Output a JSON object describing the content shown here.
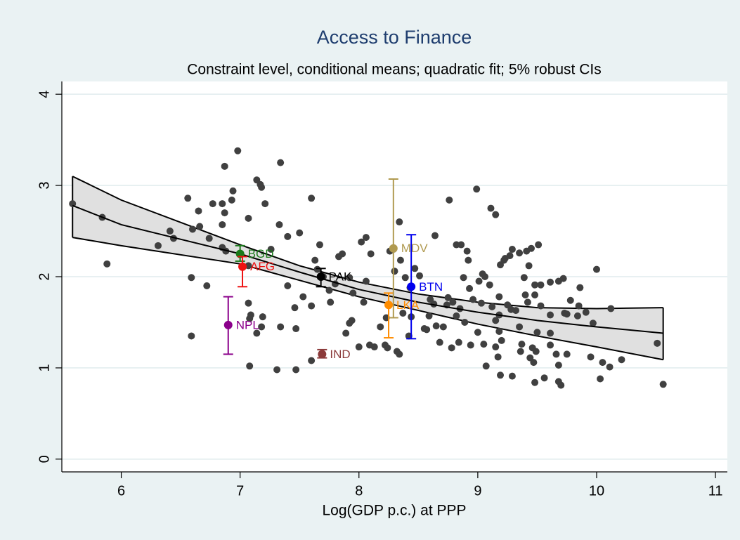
{
  "chart_data": {
    "type": "scatter",
    "title": "Access to Finance",
    "subtitle": "Constraint level, conditional means; quadratic fit; 5% robust CIs",
    "x_label": "Log(GDP p.c.) at PPP",
    "xlim": [
      5.5,
      11.1
    ],
    "ylim": [
      -0.14,
      4.14
    ],
    "xticks": [
      6,
      7,
      8,
      9,
      10,
      11
    ],
    "yticks": [
      0,
      1,
      2,
      3,
      4
    ],
    "grid": true,
    "point_color": "#404040",
    "x": [
      5.59,
      5.84,
      5.88,
      6.31,
      6.41,
      6.44,
      6.56,
      6.6,
      6.59,
      6.59,
      6.65,
      6.66,
      6.72,
      6.74,
      6.77,
      6.85,
      6.85,
      6.87,
      6.87,
      6.93,
      6.94,
      6.98,
      6.85,
      6.88,
      7.07,
      7.07,
      7.08,
      7.09,
      7.08,
      7.07,
      7.14,
      7.17,
      7.18,
      7.21,
      7.14,
      7.18,
      7.19,
      7.26,
      7.31,
      7.33,
      7.34,
      7.34,
      7.4,
      7.4,
      7.46,
      7.47,
      7.47,
      7.5,
      7.53,
      7.6,
      7.6,
      7.63,
      7.65,
      7.6,
      7.67,
      7.7,
      7.75,
      7.76,
      7.8,
      7.83,
      7.86,
      7.89,
      7.92,
      7.94,
      7.92,
      7.95,
      8,
      8.02,
      8.04,
      8.06,
      8.06,
      8.09,
      8.13,
      8.1,
      8.18,
      8.22,
      8.23,
      8.24,
      8.26,
      8.29,
      8.32,
      8.34,
      8.3,
      8.34,
      8.35,
      8.37,
      8.39,
      8.42,
      8.43,
      8.44,
      8.47,
      8.51,
      8.55,
      8.57,
      8.59,
      8.6,
      8.63,
      8.64,
      8.65,
      8.68,
      8.71,
      8.74,
      8.75,
      8.79,
      8.76,
      8.78,
      8.82,
      8.82,
      8.84,
      8.85,
      8.86,
      8.88,
      8.89,
      8.91,
      8.92,
      8.93,
      8.94,
      8.96,
      8.99,
      9,
      9.01,
      9.03,
      9.04,
      9.05,
      9.06,
      9.07,
      9.1,
      9.11,
      9.12,
      9.15,
      9.15,
      9.15,
      9.17,
      9.18,
      9.18,
      9.18,
      9.19,
      9.19,
      9.2,
      9.22,
      9.23,
      9.25,
      9.27,
      9.28,
      9.29,
      9.29,
      9.32,
      9.35,
      9.35,
      9.36,
      9.37,
      9.39,
      9.4,
      9.41,
      9.42,
      9.43,
      9.44,
      9.45,
      9.46,
      9.47,
      9.48,
      9.48,
      9.48,
      9.49,
      9.5,
      9.51,
      9.53,
      9.53,
      9.56,
      9.61,
      9.61,
      9.61,
      9.61,
      9.66,
      9.68,
      9.68,
      9.68,
      9.7,
      9.72,
      9.73,
      9.75,
      9.75,
      9.78,
      9.84,
      9.85,
      9.86,
      9.91,
      9.95,
      9.97,
      10,
      10.03,
      10.05,
      10.11,
      10.12,
      10.21,
      10.51,
      10.56
    ],
    "y": [
      2.8,
      2.65,
      2.14,
      2.34,
      2.5,
      2.42,
      2.86,
      2.52,
      1.99,
      1.35,
      2.72,
      2.55,
      1.9,
      2.42,
      2.8,
      2.8,
      2.57,
      2.7,
      3.21,
      2.84,
      2.94,
      3.38,
      2.32,
      2.28,
      2.64,
      1.71,
      1.54,
      1.58,
      1.02,
      2.12,
      3.06,
      3.01,
      2.98,
      2.8,
      1.38,
      1.45,
      1.56,
      2.3,
      0.98,
      2.57,
      3.25,
      1.45,
      1.9,
      2.44,
      1.66,
      1.43,
      0.98,
      2.48,
      1.78,
      1.68,
      1.08,
      2.18,
      2.08,
      2.86,
      2.35,
      2,
      1.85,
      1.72,
      1.92,
      2.22,
      2.25,
      1.38,
      1.49,
      1.52,
      1.99,
      1.82,
      1.23,
      2.38,
      1.72,
      1.95,
      2.43,
      1.25,
      1.23,
      2.25,
      1.45,
      1.25,
      1.55,
      1.22,
      2.28,
      2.3,
      1.18,
      1.15,
      2.06,
      2.6,
      2.18,
      1.6,
      1.99,
      1.35,
      1.88,
      1.56,
      2.09,
      2.01,
      1.43,
      1.42,
      1.57,
      1.75,
      1.7,
      2.45,
      1.46,
      1.28,
      1.45,
      1.69,
      1.77,
      1.72,
      2.84,
      1.22,
      1.57,
      2.35,
      1.28,
      1.65,
      2.35,
      1.99,
      1.5,
      2.28,
      2.18,
      1.87,
      1.25,
      1.75,
      2.96,
      1.39,
      1.95,
      1.71,
      2.03,
      1.26,
      2,
      1.02,
      1.91,
      2.75,
      1.67,
      2.68,
      1.52,
      1.23,
      1.12,
      1.78,
      1.58,
      1.4,
      0.92,
      2.13,
      1.3,
      2.18,
      2.2,
      1.69,
      2.23,
      1.64,
      0.91,
      2.3,
      1.63,
      2.26,
      1.45,
      1.18,
      1.26,
      1.99,
      1.8,
      2.28,
      1.72,
      2.12,
      1.11,
      2.31,
      1.22,
      1.06,
      1.91,
      1.8,
      0.84,
      1.18,
      1.39,
      2.35,
      1.68,
      1.91,
      0.89,
      1.58,
      1.94,
      1.38,
      1.25,
      1.15,
      1.03,
      1.95,
      0.85,
      0.81,
      1.98,
      1.6,
      1.59,
      1.15,
      1.74,
      1.57,
      1.68,
      1.88,
      1.61,
      1.12,
      1.49,
      2.08,
      0.88,
      1.06,
      1.01,
      1.65,
      1.09,
      1.27,
      0.82
    ],
    "fit": {
      "x": [
        5.59,
        6,
        7,
        7.5,
        8,
        8.5,
        9,
        9.5,
        10,
        10.56
      ],
      "values": [
        2.78,
        2.57,
        2.25,
        2.05,
        1.86,
        1.72,
        1.61,
        1.52,
        1.45,
        1.38
      ],
      "upper": [
        3.1,
        2.84,
        2.35,
        2.12,
        1.94,
        1.81,
        1.72,
        1.66,
        1.65,
        1.66
      ],
      "lower": [
        2.43,
        2.34,
        2.14,
        1.96,
        1.78,
        1.63,
        1.48,
        1.35,
        1.23,
        1.09
      ],
      "color": "#000000",
      "band_color": "#e0e0e0"
    },
    "countries": [
      {
        "name": "BGD",
        "x": 7.0,
        "y": 2.25,
        "low": 2.17,
        "high": 2.34,
        "color": "#1a7a1a"
      },
      {
        "name": "AFG",
        "x": 7.02,
        "y": 2.11,
        "low": 1.89,
        "high": 2.22,
        "color": "#ee1111"
      },
      {
        "name": "NPL",
        "x": 6.9,
        "y": 1.47,
        "low": 1.15,
        "high": 1.78,
        "color": "#8b008b"
      },
      {
        "name": "PAK",
        "x": 7.68,
        "y": 2.0,
        "low": 1.89,
        "high": 2.09,
        "color": "#000000"
      },
      {
        "name": "IND",
        "x": 7.69,
        "y": 1.15,
        "low": 1.11,
        "high": 1.2,
        "color": "#8b3a3a"
      },
      {
        "name": "LKA",
        "x": 8.25,
        "y": 1.69,
        "low": 1.33,
        "high": 1.82,
        "color": "#ff8c00"
      },
      {
        "name": "MDV",
        "x": 8.29,
        "y": 2.31,
        "low": 1.55,
        "high": 3.07,
        "color": "#b09a50"
      },
      {
        "name": "BTN",
        "x": 8.44,
        "y": 1.89,
        "low": 1.32,
        "high": 2.46,
        "color": "#0000ee"
      }
    ]
  }
}
